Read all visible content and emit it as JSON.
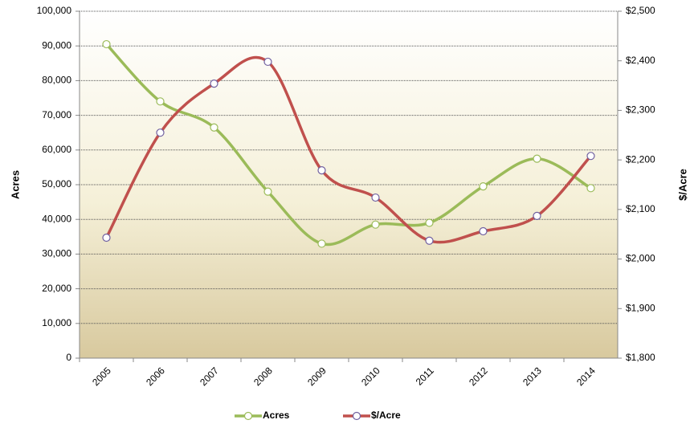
{
  "chart_data": {
    "type": "line",
    "categories": [
      "2005",
      "2006",
      "2007",
      "2008",
      "2009",
      "2010",
      "2011",
      "2012",
      "2013",
      "2014"
    ],
    "y_label": "Acres",
    "y2_label": "$/Acre",
    "series": [
      {
        "name": "Acres",
        "color": "#9bbb59",
        "values": [
          90500,
          74000,
          66500,
          48000,
          33000,
          38500,
          39000,
          49500,
          57500,
          49000
        ]
      },
      {
        "name": "$/Acre",
        "color": "#c0504d",
        "axis": "y2",
        "values": [
          2043,
          2255,
          2354,
          2398,
          2179,
          2124,
          2037,
          2056,
          2087,
          2208
        ]
      }
    ],
    "ylim": [
      0,
      100000
    ],
    "yticks": [
      0,
      {
        "value": 10000,
        "label": "10,000"
      },
      {
        "value": 20000,
        "label": "20,000"
      },
      {
        "value": 30000,
        "label": "30,000"
      },
      {
        "value": 40000,
        "label": "40,000"
      },
      {
        "value": 50000,
        "label": "50,000"
      },
      {
        "value": 60000,
        "label": "60,000"
      },
      {
        "value": 70000,
        "label": "70,000"
      },
      {
        "value": 80000,
        "label": "80,000"
      },
      {
        "value": 90000,
        "label": "90,000"
      },
      {
        "value": 100000,
        "label": "100,000"
      }
    ],
    "y2lim": [
      1800,
      2500
    ],
    "y2ticks": [
      {
        "value": 1800,
        "label": "$1,800"
      },
      {
        "value": 1900,
        "label": "$1,900"
      },
      {
        "value": 2000,
        "label": "$2,000"
      },
      {
        "value": 2100,
        "label": "$2,100"
      },
      {
        "value": 2200,
        "label": "$2,200"
      },
      {
        "value": 2300,
        "label": "$2,300"
      },
      {
        "value": 2400,
        "label": "$2,400"
      },
      {
        "value": 2500,
        "label": "$2,500"
      }
    ],
    "grid": true
  }
}
